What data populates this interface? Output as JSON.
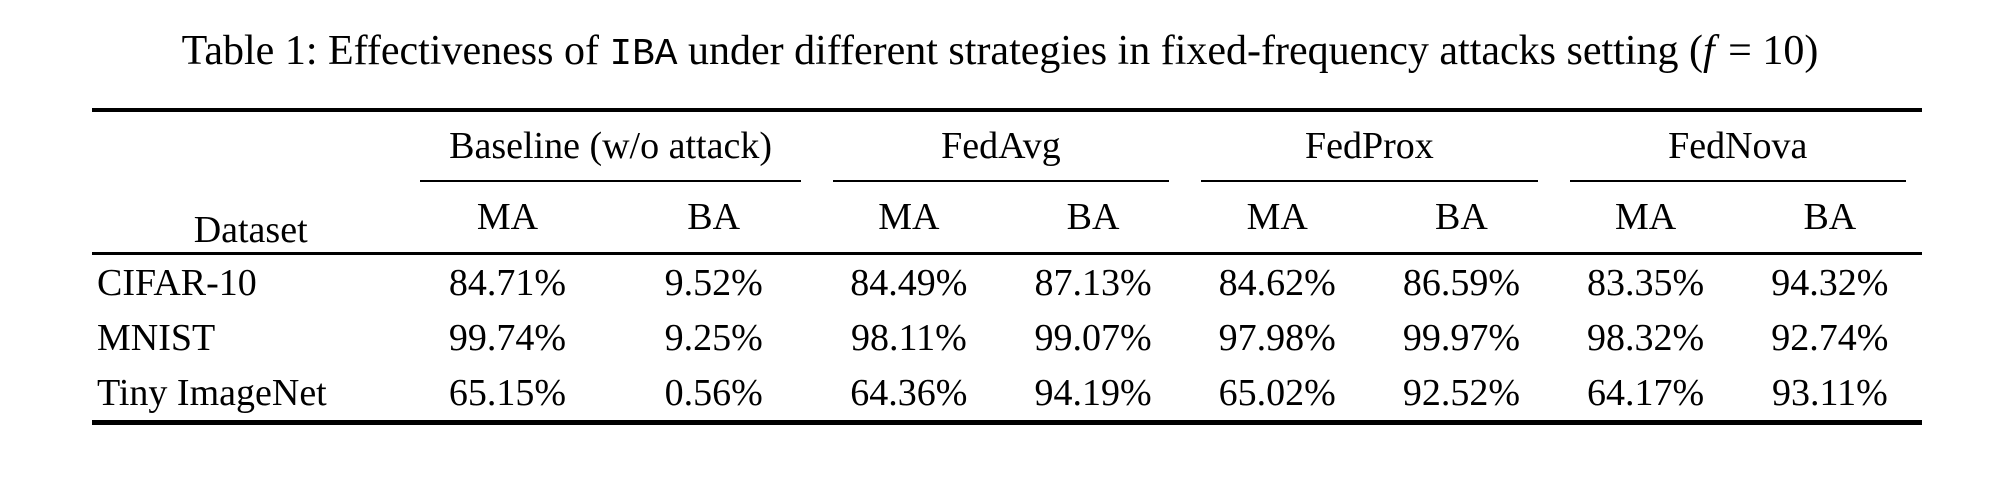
{
  "caption": {
    "part1": "Table 1: Effectiveness of ",
    "code": "IBA",
    "part2": " under different strategies in fixed-frequency attacks setting (",
    "math_var": "f",
    "part3": " = 10)"
  },
  "table": {
    "dataset_header": "Dataset",
    "groups": [
      {
        "label": "Baseline (w/o attack)"
      },
      {
        "label": "FedAvg"
      },
      {
        "label": "FedProx"
      },
      {
        "label": "FedNova"
      }
    ],
    "subheaders": [
      "MA",
      "BA",
      "MA",
      "BA",
      "MA",
      "BA",
      "MA",
      "BA"
    ],
    "rows": [
      {
        "dataset": "CIFAR-10",
        "values": [
          "84.71%",
          "9.52%",
          "84.49%",
          "87.13%",
          "84.62%",
          "86.59%",
          "83.35%",
          "94.32%"
        ]
      },
      {
        "dataset": "MNIST",
        "values": [
          "99.74%",
          "9.25%",
          "98.11%",
          "99.07%",
          "97.98%",
          "99.97%",
          "98.32%",
          "92.74%"
        ]
      },
      {
        "dataset": "Tiny ImageNet",
        "values": [
          "65.15%",
          "0.56%",
          "64.36%",
          "94.19%",
          "65.02%",
          "92.52%",
          "64.17%",
          "93.11%"
        ]
      }
    ]
  },
  "colors": {
    "text": "#000000",
    "background": "#ffffff",
    "rule": "#000000"
  }
}
